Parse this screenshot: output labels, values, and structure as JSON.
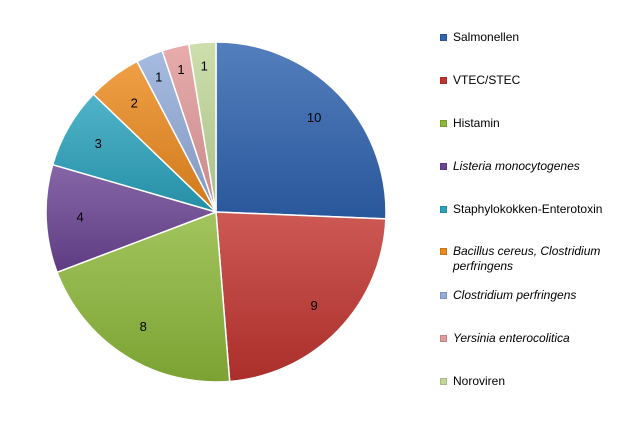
{
  "chart_data": {
    "type": "pie",
    "title": "",
    "categories": [
      "Salmonellen",
      "VTEC/STEC",
      "Histamin",
      "Listeria monocytogenes",
      "Staphylokokken-Enterotoxin",
      "Bacillus cereus, Clostridium perfringens",
      "Clostridium perfringens",
      "Yersinia enterocolitica",
      "Noroviren"
    ],
    "values": [
      10,
      9,
      8,
      4,
      3,
      2,
      1,
      1,
      1
    ],
    "colors": [
      "#2f63b0",
      "#c23430",
      "#8db83a",
      "#6c4494",
      "#2aa3bd",
      "#ec8a1d",
      "#93acd9",
      "#e39a9a",
      "#c2d89a"
    ],
    "italic": [
      false,
      false,
      false,
      true,
      false,
      true,
      true,
      true,
      false
    ],
    "start_angle_deg": 0,
    "direction": "clockwise",
    "legend_position": "right"
  }
}
